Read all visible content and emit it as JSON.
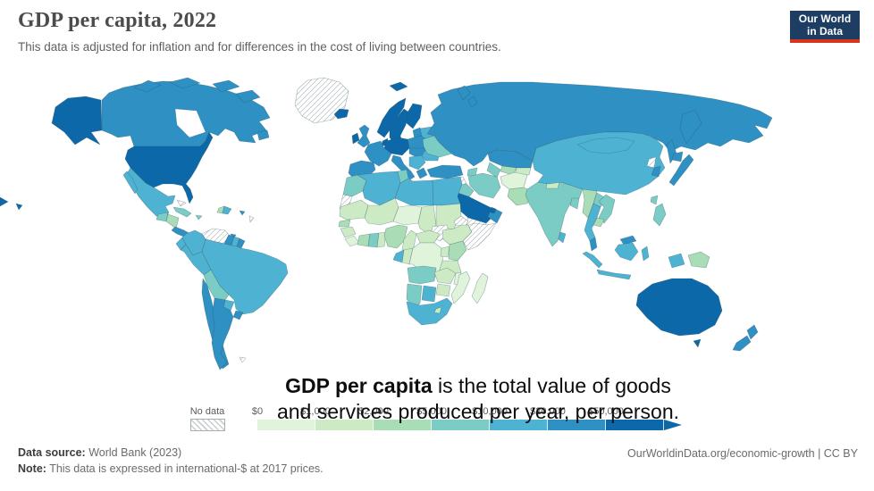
{
  "header": {
    "title": "GDP per capita, 2022",
    "subtitle": "This data is adjusted for inflation and for differences in the cost of living between countries.",
    "logo": {
      "line1": "Our World",
      "line2": "in Data",
      "bg": "#1d3d63",
      "accent": "#d8351f"
    }
  },
  "annotation": {
    "bold": "GDP per capita",
    "line1_rest": " is the total value of goods",
    "line2": "and services produced per year, per person."
  },
  "legend": {
    "no_data_label": "No data",
    "ticks": [
      "$0",
      "$1,000",
      "$2,000",
      "$5,000",
      "$10,000",
      "$20,000",
      "$50,000"
    ],
    "bins": [
      {
        "label": "$0-$1,000",
        "color": "#e0f3db"
      },
      {
        "label": "$1,000-$2,000",
        "color": "#ccebc5"
      },
      {
        "label": "$2,000-$5,000",
        "color": "#a8ddb5"
      },
      {
        "label": "$5,000-$10,000",
        "color": "#7bccc4"
      },
      {
        "label": "$10,000-$20,000",
        "color": "#4eb3d3"
      },
      {
        "label": "$20,000-$50,000",
        "color": "#2e90c3"
      },
      {
        "label": "$50,000+",
        "color": "#0c68a8"
      }
    ]
  },
  "footer": {
    "source_label": "Data source:",
    "source_value": " World Bank (2023)",
    "note_label": "Note:",
    "note_value": " This data is expressed in international-$ at 2017 prices.",
    "credit": "OurWorldinData.org/economic-growth | CC BY"
  },
  "map": {
    "ocean": "#ffffff",
    "regions": {
      "usa": 7,
      "canada": 6,
      "greenland": "no-data",
      "mexico": 5,
      "guatemala": 4,
      "honduras-nicaragua": 3,
      "costa-rica-panama": 6,
      "cuba": 4,
      "jamaica": 4,
      "haiti": 3,
      "dominican-republic": 5,
      "puerto-rico": 6,
      "bahamas": "no-data",
      "lesser-antilles": "no-data",
      "trinidad": 6,
      "venezuela": "no-data",
      "colombia": 5,
      "guyana": 6,
      "suriname": 5,
      "french-guiana": 6,
      "ecuador": 5,
      "peru": 5,
      "brazil": 5,
      "bolivia": 4,
      "paraguay": 5,
      "uruguay": 6,
      "chile": 6,
      "argentina": 6,
      "falkland-islands": "no-data",
      "iceland": 7,
      "ireland": 7,
      "uk": 6,
      "norway": 7,
      "sweden": 7,
      "finland": 7,
      "denmark": 7,
      "baltics": 6,
      "belarus": 5,
      "poland": 6,
      "western-europe": 7,
      "france": 6,
      "iberia": 6,
      "italy": 6,
      "central-europe": 6,
      "balkans": 5,
      "romania": 5,
      "greece": 6,
      "ukraine": 4,
      "russia": 6,
      "kazakhstan": 6,
      "uzbekistan": 3,
      "turkmenistan": 4,
      "kyrgyzstan-tajikistan": 2,
      "caucasus": 4,
      "turkey": 6,
      "syria": "no-data",
      "iraq": 4,
      "jordan": 4,
      "saudi-arabia": 7,
      "yemen": "no-data",
      "oman": 6,
      "uae": 7,
      "iran": 4,
      "afghanistan": 1,
      "pakistan": 3,
      "india": 4,
      "nepal": 2,
      "bangladesh": 4,
      "sri-lanka": 5,
      "china": 5,
      "mongolia": 5,
      "north-korea": "no-data",
      "south-korea": 6,
      "japan": 6,
      "taiwan": 4,
      "myanmar": 3,
      "laos": 4,
      "thailand": 5,
      "vietnam": 4,
      "cambodia": 3,
      "malaysia": 6,
      "indonesia": 5,
      "philippines": 4,
      "papua-new-guinea": 3,
      "australia": 7,
      "new-zealand": 6,
      "morocco": 4,
      "western-sahara": "no-data",
      "algeria": 5,
      "tunisia": 4,
      "libya": 5,
      "egypt": 5,
      "mauritania": 2,
      "mali": 2,
      "niger": 1,
      "chad": 2,
      "sudan": 2,
      "south-sudan": "no-data",
      "eritrea": "no-data",
      "ethiopia": 2,
      "somalia": "no-data",
      "senegal": 3,
      "guinea": 2,
      "sierra-leone-liberia": 1,
      "ivory-coast": 3,
      "ghana": 4,
      "togo-benin": 2,
      "nigeria": 3,
      "cameroon": 2,
      "central-african-republic": 2,
      "gabon": 5,
      "congo": 2,
      "drc": 1,
      "uganda": 2,
      "kenya": 3,
      "tanzania": 2,
      "angola": 4,
      "zambia": 2,
      "malawi": 1,
      "mozambique": 1,
      "zimbabwe": 2,
      "botswana": 5,
      "namibia": 4,
      "south-africa": 5,
      "lesotho": 2,
      "madagascar": 1
    }
  }
}
